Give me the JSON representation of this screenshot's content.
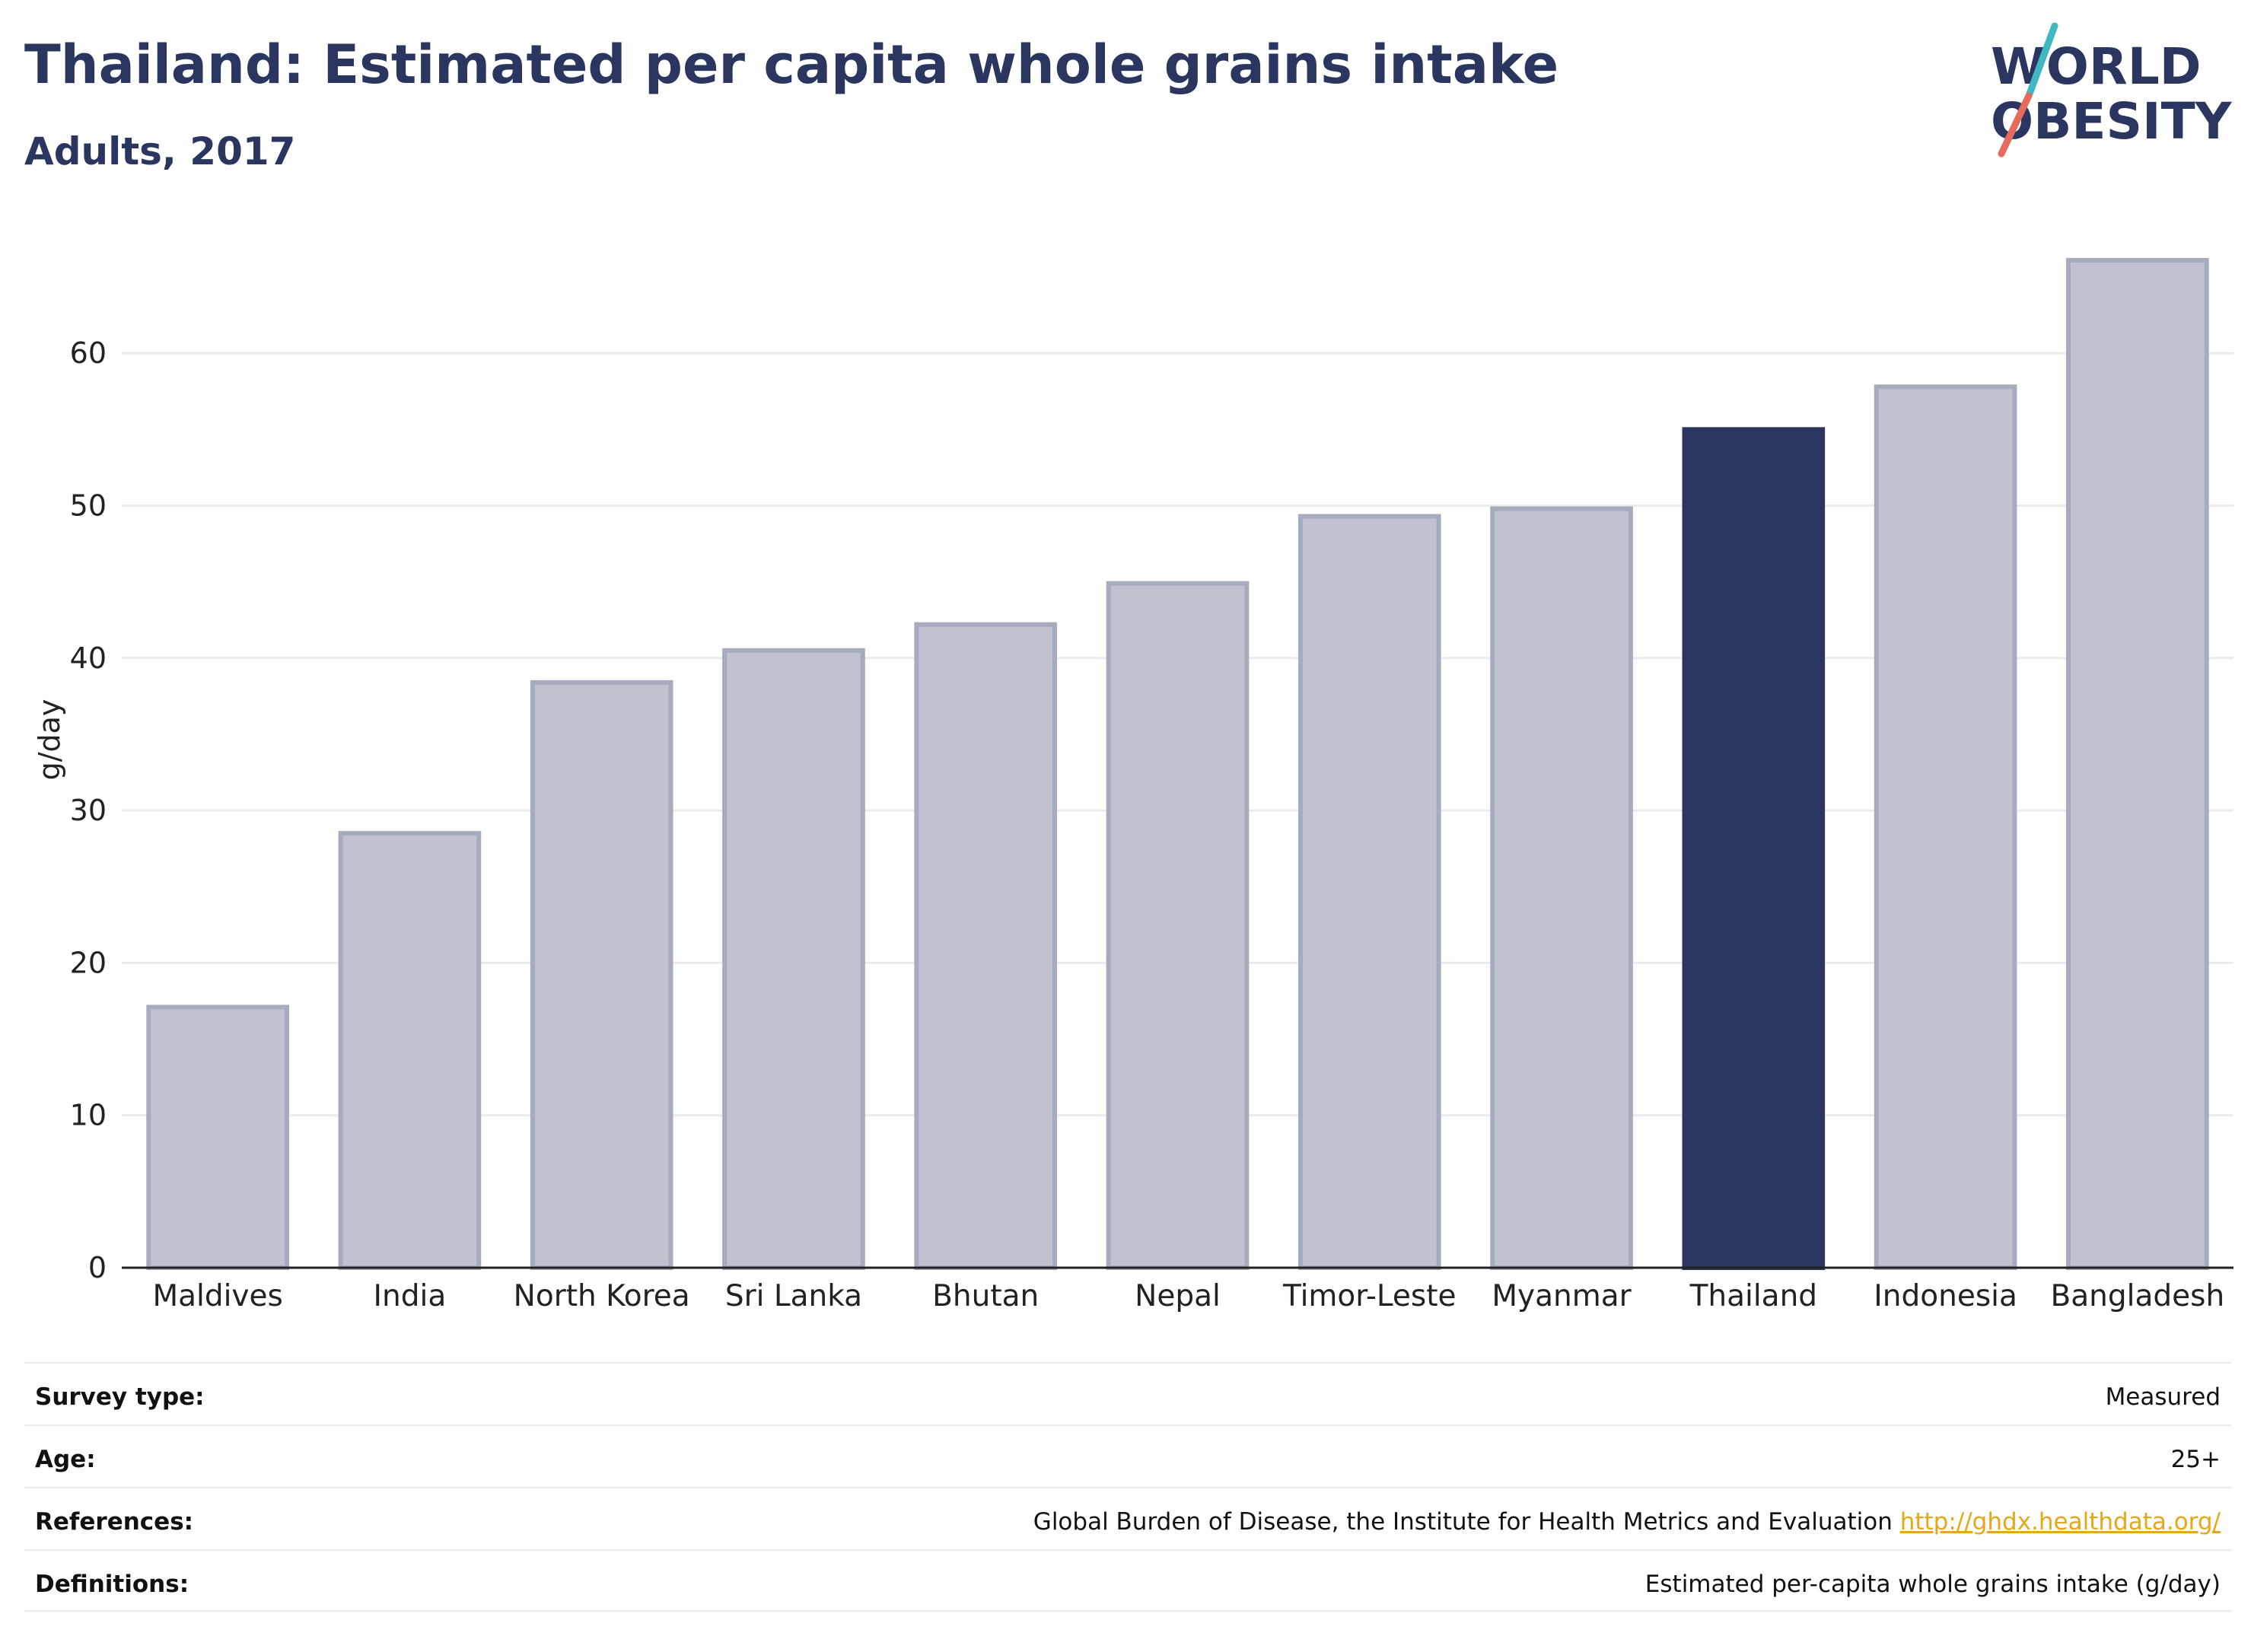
{
  "header": {
    "title": "Thailand: Estimated per capita whole grains intake",
    "subtitle": "Adults, 2017"
  },
  "logo": {
    "line1": "WORLD",
    "line2": "OBESITY",
    "text_color": "#2a3560",
    "slash_colors": [
      "#3fb8c4",
      "#e56b5d"
    ]
  },
  "chart_data": {
    "type": "bar",
    "categories": [
      "Maldives",
      "India",
      "North Korea",
      "Sri Lanka",
      "Bhutan",
      "Nepal",
      "Timor-Leste",
      "Myanmar",
      "Thailand",
      "Indonesia",
      "Bangladesh"
    ],
    "values": [
      17.1,
      28.5,
      38.4,
      40.5,
      42.2,
      44.9,
      49.3,
      49.8,
      55.0,
      57.8,
      66.1
    ],
    "highlight": "Thailand",
    "ylabel": "g/day",
    "xlabel": "",
    "ylim": [
      0,
      70
    ],
    "yticks": [
      0,
      10,
      20,
      30,
      40,
      50,
      60
    ],
    "grid": true,
    "colors": {
      "bar": "#bfc3d0",
      "bar_edge": "#a6abbd",
      "highlight": "#2a3560",
      "grid": "#e9ebee",
      "axis": "#222222"
    }
  },
  "meta": [
    {
      "key": "Survey type:",
      "value": "Measured"
    },
    {
      "key": "Age:",
      "value": "25+"
    },
    {
      "key": "References:",
      "value": "Global Burden of Disease, the Institute for Health Metrics and Evaluation",
      "link": "http://ghdx.healthdata.org/"
    },
    {
      "key": "Definitions:",
      "value": "Estimated per-capita whole grains intake (g/day)"
    }
  ]
}
